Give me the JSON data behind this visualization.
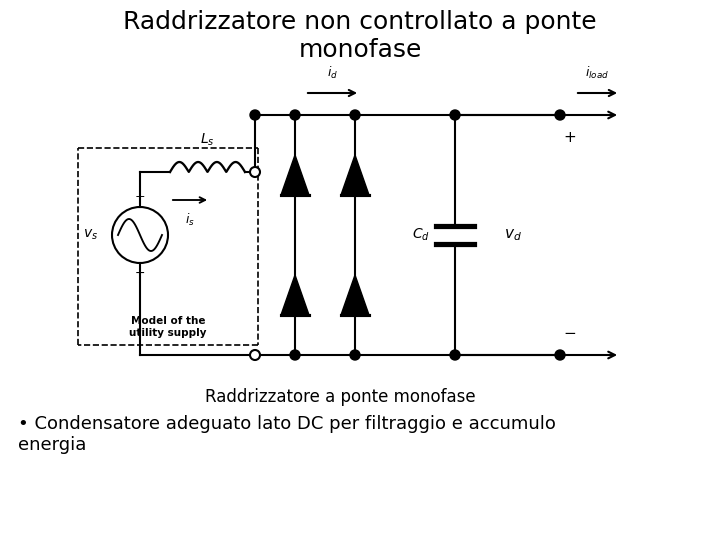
{
  "title": "Raddrizzatore non controllato a ponte\nmonofase",
  "title_fontsize": 18,
  "title_fontweight": "normal",
  "caption": "Raddrizzatore a ponte monofase",
  "caption_fontsize": 12,
  "bullet_text": "• Condensatore adeguato lato DC per filtraggio e accumulo\nenergia",
  "bullet_fontsize": 13,
  "bg_color": "#ffffff",
  "line_color": "#000000",
  "lw": 1.5
}
